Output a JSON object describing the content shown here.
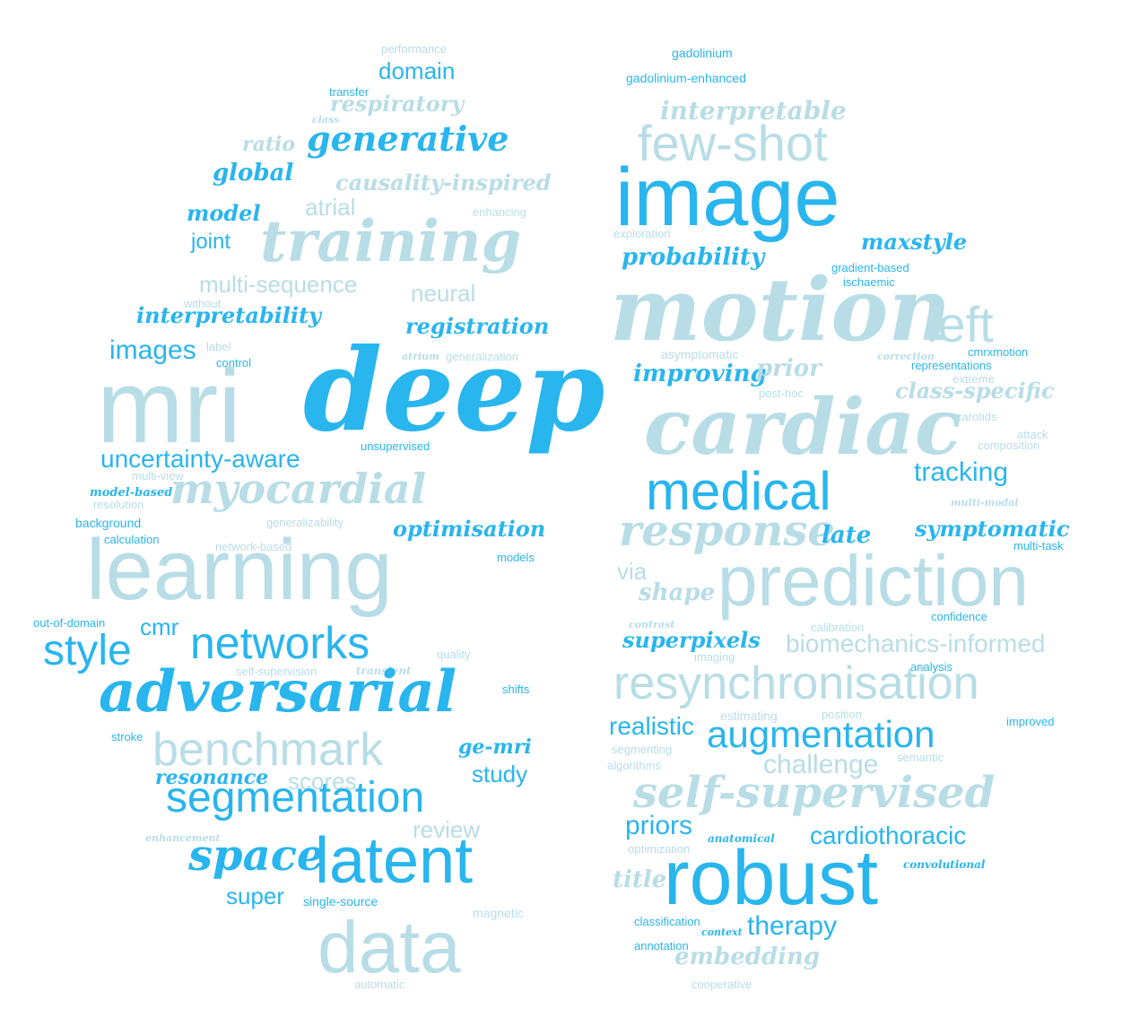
{
  "colors": {
    "dark": "#29b5ee",
    "medium": "#44c1f0",
    "light": "#b8dde6",
    "pale": "#cfe9ef",
    "background": "#ffffff"
  },
  "words": [
    "performance",
    "domain",
    "transfer",
    "respiratory",
    "class",
    "ratio",
    "generative",
    "global",
    "causality-inspired",
    "model",
    "atrial",
    "enhancing",
    "training",
    "joint",
    "multi-sequence",
    "neural",
    "without",
    "interpretability",
    "registration",
    "images",
    "label",
    "atrium",
    "generalization",
    "control",
    "mri",
    "deep",
    "unsupervised",
    "uncertainty-aware",
    "multi-view",
    "model-based",
    "myocardial",
    "resolution",
    "background",
    "generalizability",
    "calculation",
    "optimisation",
    "network-based",
    "models",
    "learning",
    "out-of-domain",
    "cmr",
    "style",
    "networks",
    "quality",
    "self-supervision",
    "transient",
    "adversarial",
    "shifts",
    "stroke",
    "benchmark",
    "ge-mri",
    "resonance",
    "study",
    "scores",
    "segmentation",
    "enhancement",
    "review",
    "space",
    "latent",
    "super",
    "single-source",
    "magnetic",
    "data",
    "automatic",
    "gadolinium",
    "gadolinium-enhanced",
    "interpretable",
    "few-shot",
    "image",
    "exploration",
    "maxstyle",
    "probability",
    "gradient-based",
    "ischaemic",
    "motion",
    "left",
    "asymptomatic",
    "cmrxmotion",
    "correction",
    "representations",
    "improving",
    "prior",
    "extreme",
    "post-hoc",
    "class-specific",
    "cardiac",
    "carotids",
    "attack",
    "composition",
    "tracking",
    "medical",
    "multi-modal",
    "response",
    "symptomatic",
    "late",
    "multi-task",
    "via",
    "prediction",
    "shape",
    "contrast",
    "calibration",
    "confidence",
    "superpixels",
    "biomechanics-informed",
    "imaging",
    "analysis",
    "resynchronisation",
    "realistic",
    "estimating",
    "position",
    "improved",
    "augmentation",
    "segmenting",
    "semantic",
    "algorithms",
    "challenge",
    "self-supervised",
    "priors",
    "cardiothoracic",
    "optimization",
    "anatomical",
    "convolutional",
    "robust",
    "title",
    "classification",
    "context",
    "therapy",
    "annotation",
    "embedding",
    "cooperative"
  ]
}
